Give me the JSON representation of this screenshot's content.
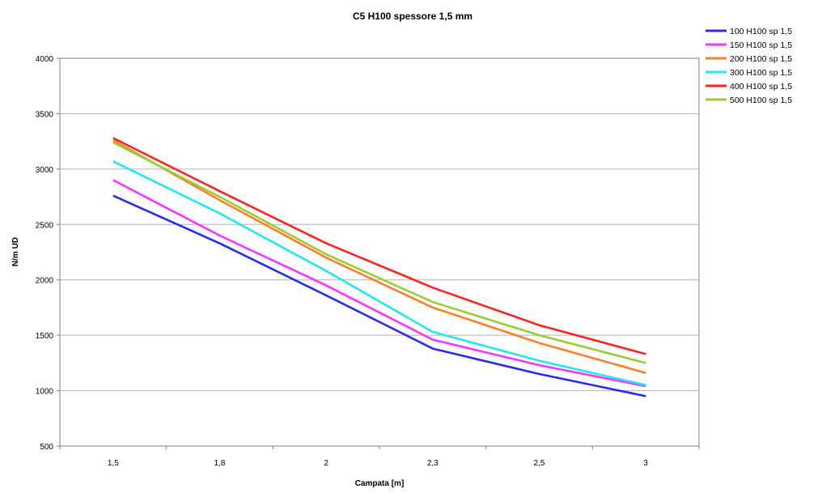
{
  "chart_data": {
    "type": "line",
    "title": "C5  H100 spessore 1,5 mm",
    "xlabel": "Campata [m]",
    "ylabel": "N/m  UD",
    "categories": [
      "1,5",
      "1,8",
      "2",
      "2,3",
      "2,5",
      "3"
    ],
    "ylim": [
      500,
      4000
    ],
    "yticks": [
      500,
      1000,
      1500,
      2000,
      2500,
      3000,
      3500,
      4000
    ],
    "grid": true,
    "legend_position": "right",
    "series": [
      {
        "name": "100 H100 sp 1,5",
        "color": "#2a2af0",
        "values": [
          2760,
          2330,
          1860,
          1380,
          1150,
          950
        ]
      },
      {
        "name": "150 H100 sp 1,5",
        "color": "#ff33ff",
        "values": [
          2900,
          2400,
          1950,
          1460,
          1230,
          1040
        ]
      },
      {
        "name": "200 H100 sp 1,5",
        "color": "#ff7f27",
        "values": [
          3260,
          2720,
          2200,
          1750,
          1430,
          1160
        ]
      },
      {
        "name": "300 H100 sp 1,5",
        "color": "#22e6f0",
        "values": [
          3070,
          2600,
          2080,
          1530,
          1270,
          1050
        ]
      },
      {
        "name": "400 H100 sp 1,5",
        "color": "#ff2222",
        "values": [
          3280,
          2800,
          2330,
          1930,
          1590,
          1330
        ]
      },
      {
        "name": "500 H100 sp 1,5",
        "color": "#9acd32",
        "values": [
          3240,
          2750,
          2230,
          1800,
          1500,
          1250
        ]
      }
    ]
  }
}
